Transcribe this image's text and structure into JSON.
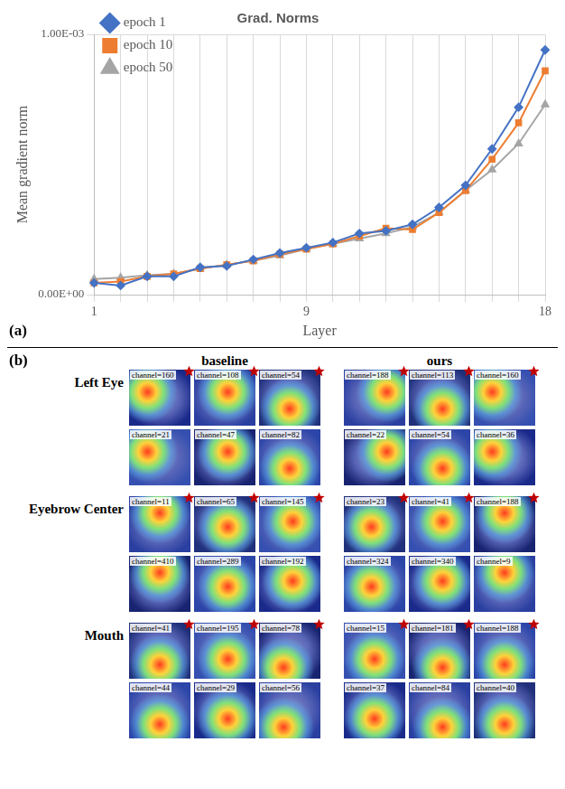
{
  "chart_data": {
    "type": "line",
    "title": "Grad. Norms",
    "x_label": "Layer",
    "y_label": "Mean gradient norm",
    "panel_label": "(a)",
    "categories": [
      1,
      null,
      null,
      null,
      null,
      null,
      null,
      null,
      9,
      null,
      null,
      null,
      null,
      null,
      null,
      null,
      null,
      18
    ],
    "series": [
      {
        "name": "epoch 1",
        "color": "#4472c4",
        "marker": "diamond",
        "values": [
          4.5e-05,
          3.5e-05,
          7e-05,
          7e-05,
          0.000105,
          0.00011,
          0.000135,
          0.00016,
          0.00018,
          0.0002,
          0.000235,
          0.000245,
          0.00027,
          0.000335,
          0.00042,
          0.00056,
          0.00072,
          0.00094
        ]
      },
      {
        "name": "epoch 10",
        "color": "#ed7d31",
        "marker": "square",
        "values": [
          4.5e-05,
          5e-05,
          7e-05,
          8e-05,
          0.0001,
          0.000115,
          0.00013,
          0.000155,
          0.000175,
          0.000195,
          0.000225,
          0.000255,
          0.00025,
          0.000315,
          0.0004,
          0.00052,
          0.00066,
          0.00086
        ]
      },
      {
        "name": "epoch 50",
        "color": "#a5a5a5",
        "marker": "triangle",
        "values": [
          6e-05,
          6.5e-05,
          7.5e-05,
          8e-05,
          0.0001,
          0.000115,
          0.00013,
          0.00015,
          0.000175,
          0.000195,
          0.000215,
          0.000235,
          0.00026,
          0.000315,
          0.0004,
          0.00048,
          0.00058,
          0.00073
        ]
      }
    ],
    "ylim": [
      0,
      0.001
    ],
    "yticks": [
      {
        "value": 0,
        "label": "0.00E+00"
      },
      {
        "value": 0.001,
        "label": "1.00E-03"
      }
    ],
    "grid": true,
    "legend": "top-left"
  },
  "panel_b": {
    "label": "(b)",
    "columns": [
      "baseline",
      "ours"
    ],
    "rows": [
      {
        "name": "Left Eye",
        "baseline": [
          {
            "channel": "channel=160",
            "starred": true
          },
          {
            "channel": "channel=108",
            "starred": true
          },
          {
            "channel": "channel=54",
            "starred": true
          },
          {
            "channel": "channel=21",
            "starred": false
          },
          {
            "channel": "channel=47",
            "starred": false
          },
          {
            "channel": "channel=82",
            "starred": false
          }
        ],
        "ours": [
          {
            "channel": "channel=188",
            "starred": true
          },
          {
            "channel": "channel=113",
            "starred": true
          },
          {
            "channel": "channel=160",
            "starred": true
          },
          {
            "channel": "channel=22",
            "starred": false
          },
          {
            "channel": "channel=54",
            "starred": false
          },
          {
            "channel": "channel=36",
            "starred": false
          }
        ]
      },
      {
        "name": "Eyebrow Center",
        "baseline": [
          {
            "channel": "channel=11",
            "starred": true
          },
          {
            "channel": "channel=65",
            "starred": true
          },
          {
            "channel": "channel=145",
            "starred": true
          },
          {
            "channel": "channel=410",
            "starred": false
          },
          {
            "channel": "channel=289",
            "starred": false
          },
          {
            "channel": "channel=192",
            "starred": false
          }
        ],
        "ours": [
          {
            "channel": "channel=23",
            "starred": true
          },
          {
            "channel": "channel=41",
            "starred": true
          },
          {
            "channel": "channel=188",
            "starred": true
          },
          {
            "channel": "channel=324",
            "starred": false
          },
          {
            "channel": "channel=340",
            "starred": false
          },
          {
            "channel": "channel=9",
            "starred": false
          }
        ]
      },
      {
        "name": "Mouth",
        "baseline": [
          {
            "channel": "channel=41",
            "starred": true
          },
          {
            "channel": "channel=195",
            "starred": true
          },
          {
            "channel": "channel=78",
            "starred": true
          },
          {
            "channel": "channel=44",
            "starred": false
          },
          {
            "channel": "channel=29",
            "starred": false
          },
          {
            "channel": "channel=56",
            "starred": false
          }
        ],
        "ours": [
          {
            "channel": "channel=15",
            "starred": true
          },
          {
            "channel": "channel=181",
            "starred": true
          },
          {
            "channel": "channel=188",
            "starred": true
          },
          {
            "channel": "channel=37",
            "starred": false
          },
          {
            "channel": "channel=84",
            "starred": false
          },
          {
            "channel": "channel=40",
            "starred": false
          }
        ]
      }
    ]
  }
}
